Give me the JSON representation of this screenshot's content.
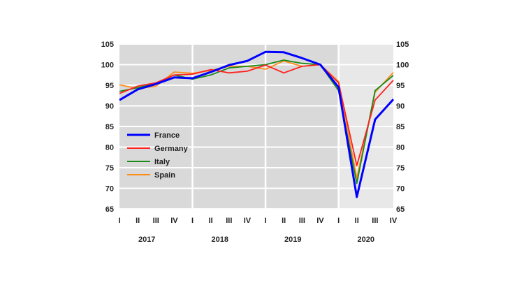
{
  "chart_data": {
    "type": "line",
    "title": "",
    "xlabel": "",
    "ylabel": "",
    "ylim": [
      65,
      105
    ],
    "yticks": [
      "105",
      "100",
      "95",
      "90",
      "85",
      "80",
      "75",
      "70",
      "65"
    ],
    "ytick_values": [
      105,
      100,
      95,
      90,
      85,
      80,
      75,
      70,
      65
    ],
    "y_axis_sides": "left and right",
    "grid": "horizontal major, vertical at year boundaries",
    "background": {
      "shaded": "#d9d9d9",
      "shaded_light_period": "#e8e8e8"
    },
    "x": [
      "2017 I",
      "2017 II",
      "2017 III",
      "2017 IV",
      "2018 I",
      "2018 II",
      "2018 III",
      "2018 IV",
      "2019 I",
      "2019 II",
      "2019 III",
      "2019 IV",
      "2020 I",
      "2020 II",
      "2020 III",
      "2020 IV"
    ],
    "quarter_labels": [
      "I",
      "II",
      "III",
      "IV",
      "I",
      "II",
      "III",
      "IV",
      "I",
      "II",
      "III",
      "IV",
      "I",
      "II",
      "III",
      "IV"
    ],
    "years": [
      "2017",
      "2018",
      "2019",
      "2020"
    ],
    "legend_placement": "lower-left inside",
    "series": [
      {
        "name": "France",
        "color": "#0000ff",
        "values": [
          91.4,
          94.0,
          95.3,
          96.9,
          96.7,
          98.2,
          99.9,
          100.9,
          103.1,
          103.0,
          101.6,
          100,
          94.5,
          67.9,
          86.7,
          91.6
        ]
      },
      {
        "name": "Germany",
        "color": "#ff2020",
        "values": [
          93.0,
          94.8,
          95.6,
          97.5,
          97.7,
          98.8,
          98.0,
          98.4,
          99.9,
          98.0,
          99.6,
          100,
          95.6,
          75.5,
          91.4,
          96.2
        ]
      },
      {
        "name": "Italy",
        "color": "#1a8a1a",
        "values": [
          93.5,
          94.4,
          95.5,
          97.5,
          96.5,
          97.5,
          99.2,
          99.6,
          100.0,
          101.1,
          100.3,
          100,
          93.7,
          71.2,
          93.7,
          97.4
        ]
      },
      {
        "name": "Spain",
        "color": "#ff8c1a",
        "values": [
          95.1,
          94.2,
          94.8,
          98.2,
          97.9,
          98.6,
          99.6,
          99.6,
          98.9,
          100.9,
          99.6,
          100,
          95.9,
          72.4,
          93.3,
          98.1
        ]
      }
    ]
  }
}
